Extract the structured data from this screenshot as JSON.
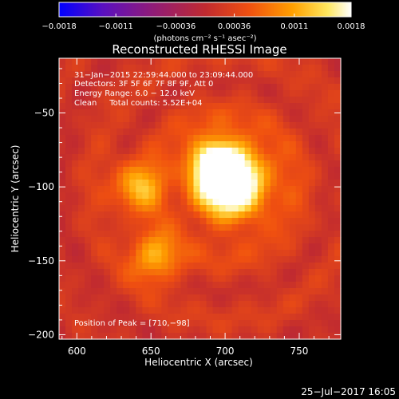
{
  "chart_data": {
    "type": "heatmap",
    "title": "Reconstructed RHESSI Image",
    "xlabel": "Heliocentric X (arcsec)",
    "ylabel": "Heliocentric Y (arcsec)",
    "xlim": [
      588,
      778
    ],
    "ylim": [
      -203,
      -13
    ],
    "x_ticks": [
      600,
      650,
      700,
      750
    ],
    "y_ticks": [
      -200,
      -150,
      -100,
      -50
    ],
    "x_tick_labels": [
      "600",
      "650",
      "700",
      "750"
    ],
    "y_tick_labels": [
      "−200",
      "−150",
      "−100",
      "−50"
    ],
    "colorbar": {
      "min": -0.0018,
      "max": 0.0018,
      "ticks": [
        -0.0018,
        -0.0011,
        -0.00036,
        0.00036,
        0.0011,
        0.0018
      ],
      "tick_labels": [
        "−0.0018",
        "−0.0011",
        "−0.00036",
        "0.00036",
        "0.0011",
        "0.0018"
      ],
      "units": "(photons cm⁻² s⁻¹ asec⁻²)",
      "colormap": [
        "#0000ff",
        "#6a00a8",
        "#a01860",
        "#e04010",
        "#ff9a00",
        "#ffff80",
        "#ffffff"
      ]
    },
    "annotations": [
      "31−Jan−2015 22:59:44.000 to 23:09:44.000",
      "Detectors: 3F 5F 6F 7F 8F 9F, Att 0",
      "Energy Range: 6.0 − 12.0 keV",
      "Clean     Total counts: 5.52E+04"
    ],
    "peak_label": "Position of Peak = [710,−98]",
    "peak": [
      710,
      -98
    ],
    "sources": [
      {
        "x": 705,
        "y": -97,
        "intensity": 0.0018
      },
      {
        "x": 693,
        "y": -84,
        "intensity": 0.0013
      },
      {
        "x": 640,
        "y": -100,
        "intensity": 0.001
      },
      {
        "x": 652,
        "y": -148,
        "intensity": 0.001
      }
    ]
  },
  "footer": {
    "timestamp": "25−Jul−2017 16:05"
  }
}
